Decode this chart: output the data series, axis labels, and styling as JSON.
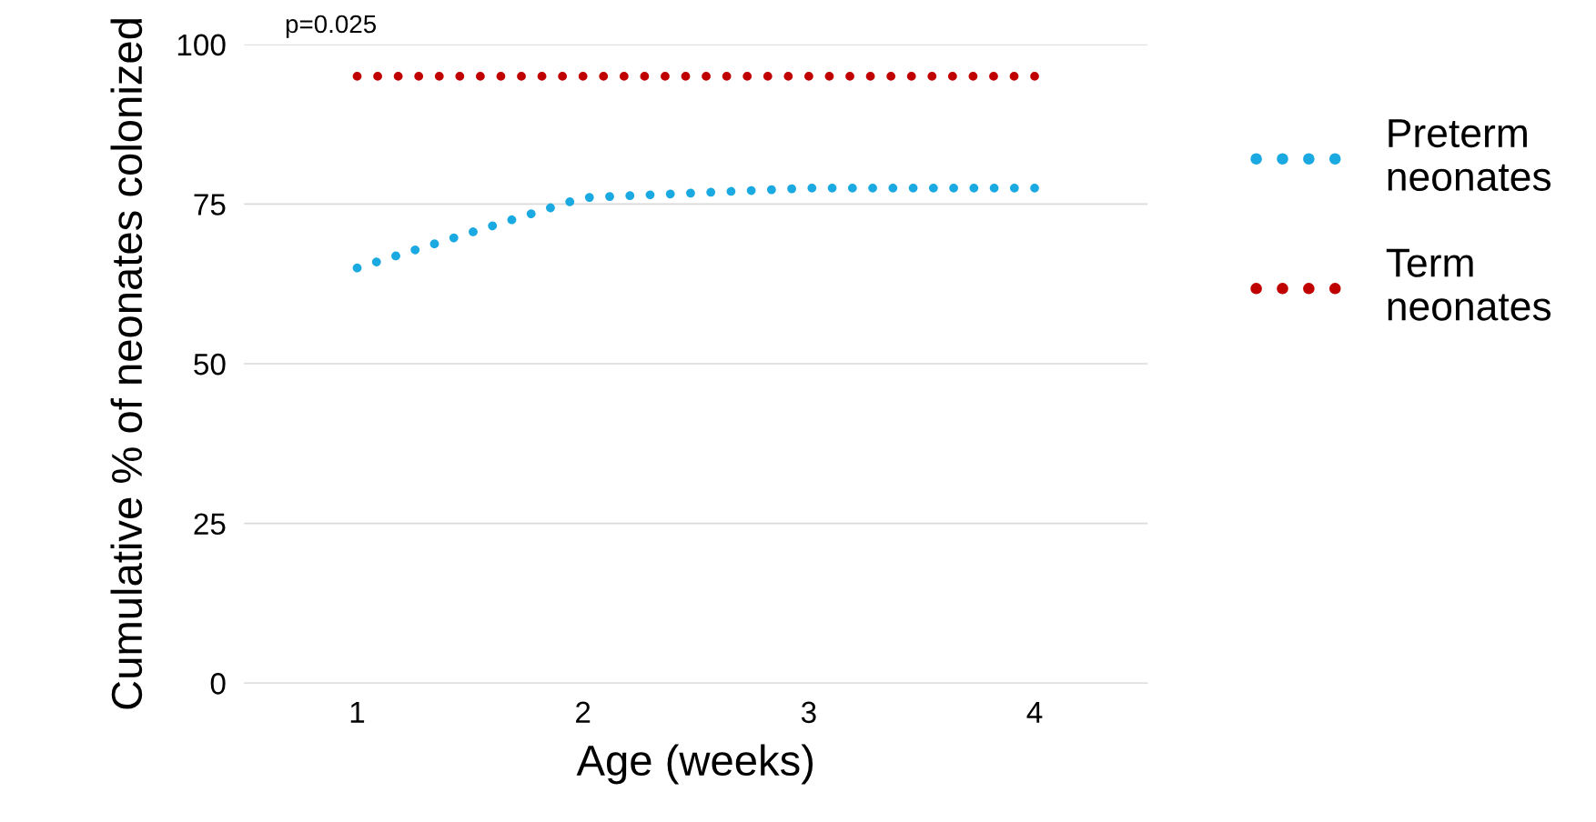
{
  "chart_data": {
    "type": "line",
    "xlabel": "Age (weeks)",
    "ylabel": "Cumulative % of neonates colonized",
    "categories": [
      "1",
      "2",
      "3",
      "4"
    ],
    "series": [
      {
        "name": "Preterm neonates",
        "color": "#1ba9e1",
        "values": [
          65,
          76,
          77.5,
          77.5
        ]
      },
      {
        "name": "Term neonates",
        "color": "#c00000",
        "values": [
          95,
          95,
          95,
          95
        ]
      }
    ],
    "ylim": [
      0,
      100
    ],
    "yticks": [
      0,
      25,
      50,
      75,
      100
    ],
    "grid": "y",
    "legend": "right",
    "marker": "none",
    "line_style": "dotted",
    "annotations": [
      "p=0.025"
    ]
  }
}
